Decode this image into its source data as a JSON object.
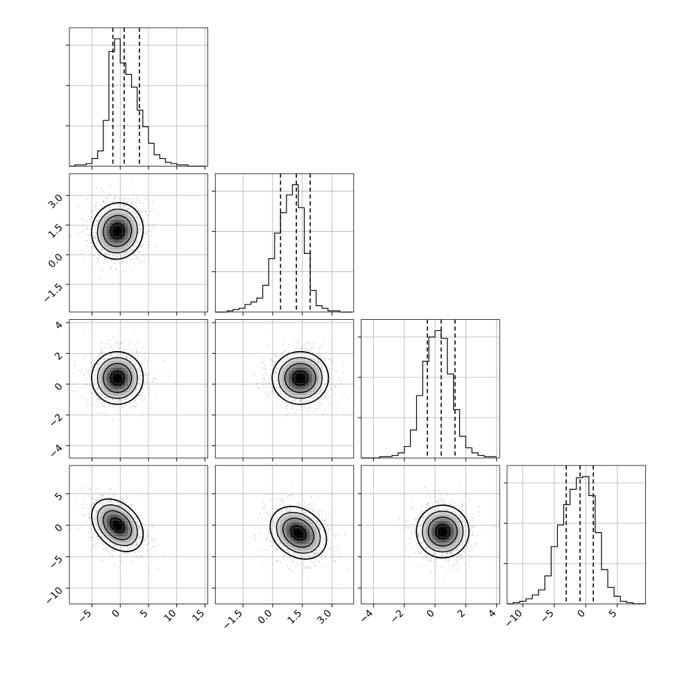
{
  "chart_data": {
    "type": "corner",
    "n_params": 4,
    "grid": true,
    "colors": {
      "line": "#000000",
      "grid": "#b0b0b0",
      "points": "#9a9a9a"
    },
    "params": [
      {
        "range": [
          -9,
          15.5
        ],
        "ticks": [
          {
            "v": -5,
            "label": "−5"
          },
          {
            "v": 0,
            "label": "0"
          },
          {
            "v": 5,
            "label": "5"
          },
          {
            "v": 10,
            "label": "10"
          },
          {
            "v": 15,
            "label": "15"
          }
        ],
        "quantiles": [
          -1.3,
          0.7,
          3.4
        ],
        "center": 0.5,
        "sigma": 2.4,
        "hist": {
          "edges": [
            -9,
            -8,
            -7,
            -6,
            -5,
            -4,
            -3,
            -2,
            -1,
            0,
            1,
            2,
            3,
            4,
            5,
            6,
            7,
            8,
            9,
            10,
            11,
            12,
            13,
            14,
            15
          ],
          "counts": [
            0,
            0.01,
            0.01,
            0.02,
            0.06,
            0.12,
            0.36,
            0.9,
            1.0,
            0.81,
            0.72,
            0.62,
            0.44,
            0.31,
            0.18,
            0.09,
            0.06,
            0.03,
            0.02,
            0.01,
            0.01,
            0,
            0,
            0
          ]
        }
      },
      {
        "range": [
          -2.9,
          4.1
        ],
        "ticks": [
          {
            "v": -1.5,
            "label": "−1.5"
          },
          {
            "v": 0.0,
            "label": "0.0"
          },
          {
            "v": 1.5,
            "label": "1.5"
          },
          {
            "v": 3.0,
            "label": "3.0"
          }
        ],
        "quantiles": [
          0.4,
          1.2,
          1.9
        ],
        "center": 1.2,
        "sigma": 0.75,
        "hist": {
          "edges": [
            -2.9,
            -2.6,
            -2.3,
            -2.0,
            -1.7,
            -1.4,
            -1.1,
            -0.8,
            -0.5,
            -0.2,
            0.1,
            0.4,
            0.7,
            1.0,
            1.3,
            1.6,
            1.9,
            2.2,
            2.5,
            2.8,
            3.1,
            3.4,
            3.7,
            4.0
          ],
          "counts": [
            0,
            0,
            0.01,
            0.02,
            0.03,
            0.06,
            0.08,
            0.11,
            0.21,
            0.42,
            0.62,
            0.78,
            0.92,
            1.0,
            0.82,
            0.46,
            0.17,
            0.05,
            0.03,
            0.01,
            0.01,
            0,
            0
          ]
        }
      },
      {
        "range": [
          -4.8,
          4.2
        ],
        "ticks": [
          {
            "v": -4,
            "label": "−4"
          },
          {
            "v": -2,
            "label": "−2"
          },
          {
            "v": 0,
            "label": "0"
          },
          {
            "v": 2,
            "label": "2"
          },
          {
            "v": 4,
            "label": "4"
          }
        ],
        "quantiles": [
          -0.5,
          0.4,
          1.3
        ],
        "center": 0.4,
        "sigma": 0.9,
        "hist": {
          "edges": [
            -4.8,
            -4.4,
            -4.0,
            -3.6,
            -3.2,
            -2.8,
            -2.4,
            -2.0,
            -1.6,
            -1.2,
            -0.8,
            -0.4,
            0.0,
            0.4,
            0.8,
            1.2,
            1.6,
            2.0,
            2.4,
            2.8,
            3.2,
            3.6,
            4.0
          ],
          "counts": [
            0,
            0,
            0,
            0.01,
            0.01,
            0.02,
            0.04,
            0.09,
            0.22,
            0.49,
            0.76,
            0.95,
            1.0,
            0.94,
            0.66,
            0.38,
            0.17,
            0.08,
            0.04,
            0.02,
            0.01,
            0.01
          ]
        }
      },
      {
        "range": [
          -12.5,
          9.5
        ],
        "ticks": [
          {
            "v": -10,
            "label": "−10"
          },
          {
            "v": -5,
            "label": "−5"
          },
          {
            "v": 0,
            "label": "0"
          },
          {
            "v": 5,
            "label": "5"
          }
        ],
        "quantiles": [
          -3.1,
          -0.9,
          1.2
        ],
        "center": -0.9,
        "sigma": 2.2,
        "hist": {
          "edges": [
            -12.5,
            -11.5,
            -10.5,
            -9.5,
            -8.5,
            -7.5,
            -6.5,
            -5.5,
            -4.5,
            -3.5,
            -2.5,
            -1.5,
            -0.5,
            0.5,
            1.5,
            2.5,
            3.5,
            4.5,
            5.5,
            6.5,
            7.5,
            8.5,
            9.5
          ],
          "counts": [
            0,
            0.01,
            0.02,
            0.04,
            0.07,
            0.11,
            0.22,
            0.45,
            0.62,
            0.78,
            0.9,
            0.99,
            1.0,
            0.85,
            0.56,
            0.27,
            0.13,
            0.06,
            0.02,
            0.01,
            0,
            0
          ]
        }
      }
    ],
    "pairs": [
      {
        "row": 1,
        "col": 0,
        "mode": [
          -0.5,
          1.2
        ],
        "rho": 0.05,
        "levels": 4
      },
      {
        "row": 2,
        "col": 0,
        "mode": [
          -0.5,
          0.4
        ],
        "rho": 0.0,
        "levels": 4
      },
      {
        "row": 2,
        "col": 1,
        "mode": [
          1.4,
          0.4
        ],
        "rho": 0.0,
        "levels": 4
      },
      {
        "row": 3,
        "col": 0,
        "mode": [
          -0.5,
          0.0
        ],
        "rho": -0.35,
        "levels": 4
      },
      {
        "row": 3,
        "col": 1,
        "mode": [
          1.3,
          -1.2
        ],
        "rho": -0.25,
        "levels": 4
      },
      {
        "row": 3,
        "col": 2,
        "mode": [
          0.5,
          -1.0
        ],
        "rho": 0.0,
        "levels": 4
      }
    ]
  }
}
